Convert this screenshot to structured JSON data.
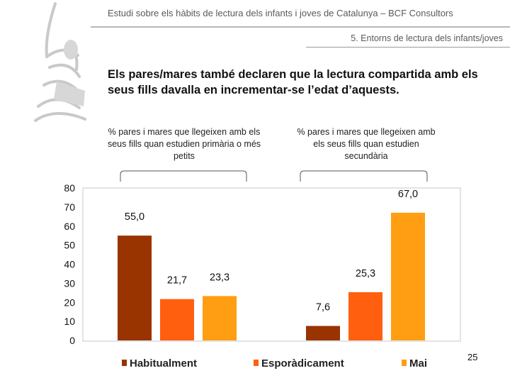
{
  "header": {
    "title": "Estudi sobre els hàbits de lectura dels infants i joves de Catalunya – BCF Consultors",
    "section": "5. Entorns de lectura dels infants/joves"
  },
  "headline": "Els pares/mares també declaren que la lectura compartida amb els seus fills davalla en incrementar-se l’edat d’aquests.",
  "page_number": "25",
  "logo_icon": "reading-figure-logo-icon",
  "colors": {
    "habitualment": "#993300",
    "esporadicament": "#ff5f0f",
    "mai": "#ff9e12"
  },
  "chart_data": {
    "type": "bar",
    "title": "",
    "xlabel": "",
    "ylabel": "",
    "ylim": [
      0,
      80
    ],
    "yticks": [
      "0",
      "10",
      "20",
      "30",
      "40",
      "50",
      "60",
      "70",
      "80"
    ],
    "categories": [
      "% pares i mares que llegeixen amb els seus fills quan estudien primària o més petits",
      "% pares i mares que llegeixen amb els seus fills quan estudien secundària"
    ],
    "series": [
      {
        "name": "Habitualment",
        "values": [
          55.0,
          7.6
        ],
        "labels": [
          "55,0",
          "7,6"
        ],
        "color": "#993300"
      },
      {
        "name": "Esporàdicament",
        "values": [
          21.7,
          25.3
        ],
        "labels": [
          "21,7",
          "25,3"
        ],
        "color": "#ff5f0f"
      },
      {
        "name": "Mai",
        "values": [
          23.3,
          67.0
        ],
        "labels": [
          "23,3",
          "67,0"
        ],
        "color": "#ff9e12"
      }
    ],
    "legend": "bottom",
    "grid": false
  }
}
